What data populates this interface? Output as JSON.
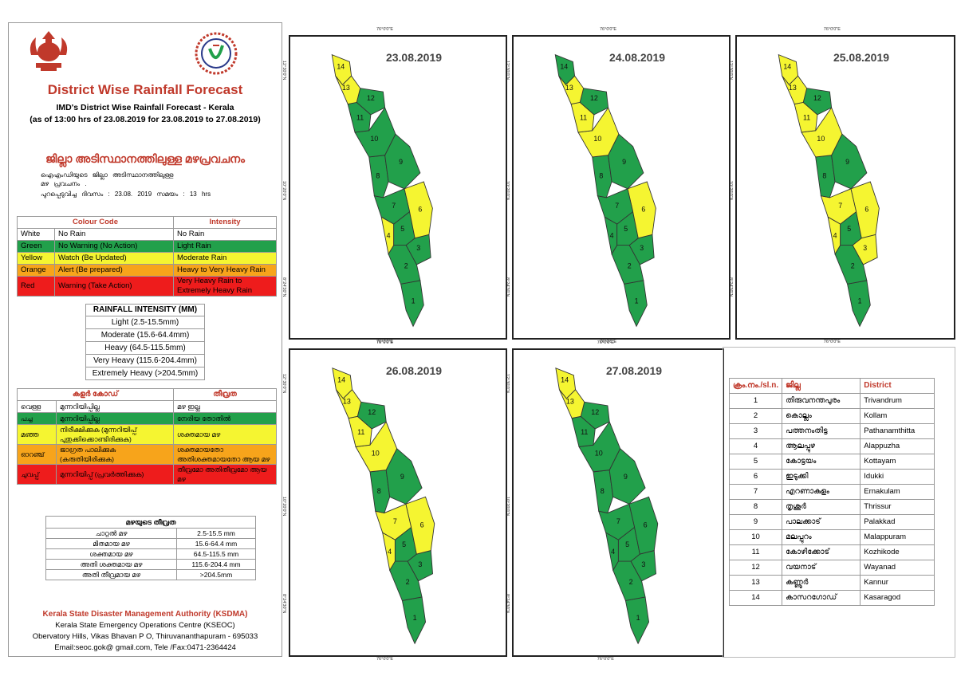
{
  "colors": {
    "green": "#22a04b",
    "yellow": "#f5f531",
    "orange": "#f7a41b",
    "red": "#ee1c1c",
    "title_red": "#c0392b"
  },
  "left": {
    "title": "District Wise Rainfall Forecast",
    "subtitle": "IMD's District Wise Rainfall Forecast - Kerala",
    "asof": "(as of 13:00 hrs of 23.08.2019  for 23.08.2019  to 27.08.2019)",
    "ml_title": "ജില്ലാ അടിസ്ഥാനത്തിലുള്ള മഴപ്രവചനം",
    "ml_line1": "ഐഎംഡിയുടെ ജില്ലാ അടിസ്ഥാനത്തിലുള്ള",
    "ml_line2": "മഴ പ്രവചനം .",
    "ml_line3": "പുറപ്പെടുവിച്ച ദിവസം : 23.08. 2019 സമയം : 13 hrs",
    "code_table": {
      "head": [
        "Colour Code",
        "Intensity"
      ],
      "rows": [
        {
          "color": "White",
          "code": "No Rain",
          "intensity": "No Rain",
          "cls": "white"
        },
        {
          "color": "Green",
          "code": "No Warning (No Action)",
          "intensity": "Light Rain",
          "cls": "green"
        },
        {
          "color": "Yellow",
          "code": "Watch (Be Updated)",
          "intensity": "Moderate Rain",
          "cls": "yellow"
        },
        {
          "color": "Orange",
          "code": "Alert (Be prepared)",
          "intensity": "Heavy to Very Heavy Rain",
          "cls": "orange"
        },
        {
          "color": "Red",
          "code": "Warning (Take Action)",
          "intensity": "Very Heavy Rain to Extremely Heavy Rain",
          "cls": "red"
        }
      ]
    },
    "intensity_table": {
      "head": "RAINFALL INTENSITY (MM)",
      "rows": [
        "Light (2.5-15.5mm)",
        "Moderate (15.6-64.4mm)",
        "Heavy (64.5-115.5mm)",
        "Very Heavy (115.6-204.4mm)",
        "Extremely Heavy (>204.5mm)"
      ]
    },
    "ml_code_table": {
      "head": [
        "കളർ കോഡ്",
        "തീവ്രത"
      ],
      "rows": [
        {
          "color": "വെള്ള",
          "code": "മുന്നറിയിപ്പില്ല",
          "intensity": "മഴ ഇല്ല",
          "cls": "white"
        },
        {
          "color": "പച്ച",
          "code": "മുന്നറിയിപ്പില്ല",
          "intensity": "നേരിയ തോതിൽ",
          "cls": "green"
        },
        {
          "color": "മഞ്ഞ",
          "code": "നിരീക്ഷിക്കുക (മുന്നറിയിപ്പ് പുതുക്കിക്കൊണ്ടിരിക്കുക)",
          "intensity": "ശക്തമായ മഴ",
          "cls": "yellow"
        },
        {
          "color": "ഓറഞ്ച്",
          "code": "ജാഗ്രത പാലിക്കുക (കരുതിയിരിക്കുക)",
          "intensity": "ശക്തമായതോ അതിശക്തമായതോ ആയ മഴ",
          "cls": "orange"
        },
        {
          "color": "ചുവപ്പ്",
          "code": "മുന്നറിയിപ്പ് (പ്രവർത്തിക്കുക)",
          "intensity": "തീവ്രമോ അതിതീവ്രമോ ആയ മഴ",
          "cls": "red"
        }
      ]
    },
    "ml_intensity_table": {
      "head": "മഴയുടെ തീവ്രത",
      "rows": [
        [
          "ചാറ്റൽ മഴ",
          "2.5-15.5 mm"
        ],
        [
          "മിതമായ മഴ",
          "15.6-64.4 mm"
        ],
        [
          "ശക്തമായ മഴ",
          "64.5-115.5 mm"
        ],
        [
          "അതി ശക്തമായ മഴ",
          "115.6-204.4 mm"
        ],
        [
          "അതി തീവ്രമായ മഴ",
          ">204.5mm"
        ]
      ]
    },
    "ksdma_name": "Kerala State Disaster Management Authority (KSDMA)",
    "ksdma_l1": "Kerala State Emergency Operations Centre (KSEOC)",
    "ksdma_l2": "Obervatory Hills, Vikas Bhavan P O, Thiruvananthapuram - 695033",
    "ksdma_l3": "Email:seoc.gok@ gmail.com, Tele /Fax:0471-2364424"
  },
  "maps": [
    {
      "date": "23.08.2019",
      "districts": {
        "1": "green",
        "2": "green",
        "3": "green",
        "4": "yellow",
        "5": "green",
        "6": "yellow",
        "7": "green",
        "8": "green",
        "9": "green",
        "10": "green",
        "11": "green",
        "12": "green",
        "13": "yellow",
        "14": "yellow"
      }
    },
    {
      "date": "24.08.2019",
      "districts": {
        "1": "green",
        "2": "green",
        "3": "green",
        "4": "green",
        "5": "green",
        "6": "yellow",
        "7": "green",
        "8": "green",
        "9": "green",
        "10": "yellow",
        "11": "yellow",
        "12": "green",
        "13": "yellow",
        "14": "green"
      }
    },
    {
      "date": "25.08.2019",
      "districts": {
        "1": "green",
        "2": "green",
        "3": "yellow",
        "4": "yellow",
        "5": "green",
        "6": "yellow",
        "7": "yellow",
        "8": "green",
        "9": "green",
        "10": "yellow",
        "11": "yellow",
        "12": "green",
        "13": "yellow",
        "14": "yellow"
      }
    },
    {
      "date": "26.08.2019",
      "districts": {
        "1": "green",
        "2": "green",
        "3": "green",
        "4": "yellow",
        "5": "green",
        "6": "yellow",
        "7": "yellow",
        "8": "green",
        "9": "green",
        "10": "yellow",
        "11": "yellow",
        "12": "green",
        "13": "yellow",
        "14": "yellow"
      }
    },
    {
      "date": "27.08.2019",
      "districts": {
        "1": "green",
        "2": "green",
        "3": "green",
        "4": "green",
        "5": "green",
        "6": "green",
        "7": "green",
        "8": "green",
        "9": "green",
        "10": "green",
        "11": "green",
        "12": "green",
        "13": "yellow",
        "14": "yellow"
      }
    }
  ],
  "map_coords": {
    "lon": "76°0'0\"E",
    "lat_top": "12°30'0\"N",
    "lat_mid": "10°20'0\"N",
    "lat_bot": "8°24'30\"N"
  },
  "district_table": {
    "head": [
      "ക്രം.നം./sl.n.",
      "ജില്ല",
      "District"
    ],
    "rows": [
      [
        "1",
        "തിരുവനന്തപുരം",
        "Trivandrum"
      ],
      [
        "2",
        "കൊല്ലം",
        "Kollam"
      ],
      [
        "3",
        "പത്തനംതിട്ട",
        "Pathanamthitta"
      ],
      [
        "4",
        "ആലപ്പുഴ",
        "Alappuzha"
      ],
      [
        "5",
        "കോട്ടയം",
        "Kottayam"
      ],
      [
        "6",
        "ഇടുക്കി",
        "Idukki"
      ],
      [
        "7",
        "എറണാകുളം",
        "Ernakulam"
      ],
      [
        "8",
        "തൃശൂർ",
        "Thrissur"
      ],
      [
        "9",
        "പാലക്കാട്",
        "Palakkad"
      ],
      [
        "10",
        "മലപ്പുറം",
        "Malappuram"
      ],
      [
        "11",
        "കോഴിക്കോട്",
        "Kozhikode"
      ],
      [
        "12",
        "വയനാട്",
        "Wayanad"
      ],
      [
        "13",
        "കണ്ണൂർ",
        "Kannur"
      ],
      [
        "14",
        "കാസറഗോഡ്",
        "Kasaragod"
      ]
    ]
  }
}
